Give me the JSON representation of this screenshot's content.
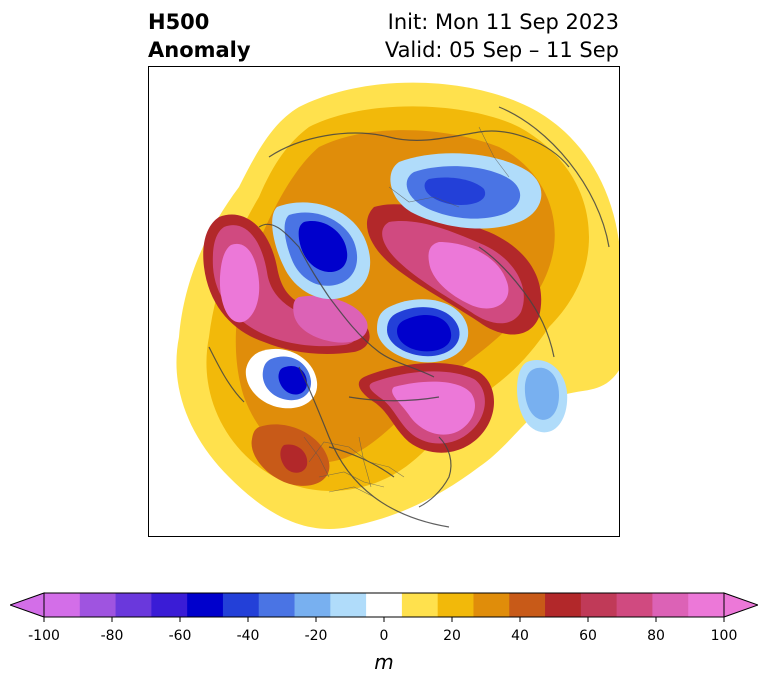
{
  "title": {
    "left_line1": "H500",
    "left_line2": "Anomaly",
    "right_line1": "Init: Mon 11 Sep 2023",
    "right_line2": "Valid: 05 Sep – 11 Sep"
  },
  "colorbar": {
    "units": "m",
    "ticks": [
      "-100",
      "-80",
      "-60",
      "-40",
      "-20",
      "0",
      "20",
      "40",
      "60",
      "80",
      "100"
    ],
    "levels": [
      -100,
      -90,
      -80,
      -70,
      -60,
      -50,
      -40,
      -30,
      -20,
      -10,
      10,
      20,
      30,
      40,
      50,
      60,
      70,
      80,
      90,
      100
    ],
    "colors": [
      "#d36ee8",
      "#9f54e0",
      "#6a38dc",
      "#3a1cd6",
      "#0000cc",
      "#2340d8",
      "#4a74e4",
      "#78b0f0",
      "#b0dcfa",
      "#ffffff",
      "#ffe14d",
      "#f2b90a",
      "#e08d0a",
      "#c85a18",
      "#b2282a",
      "#c03a58",
      "#d04a80",
      "#dc62b6",
      "#ec78d8"
    ],
    "extend_low": "#d36ee8",
    "extend_high": "#ec78d8"
  },
  "map": {
    "projection": "polar-stereographic",
    "field": "500 hPa geopotential height anomaly"
  }
}
